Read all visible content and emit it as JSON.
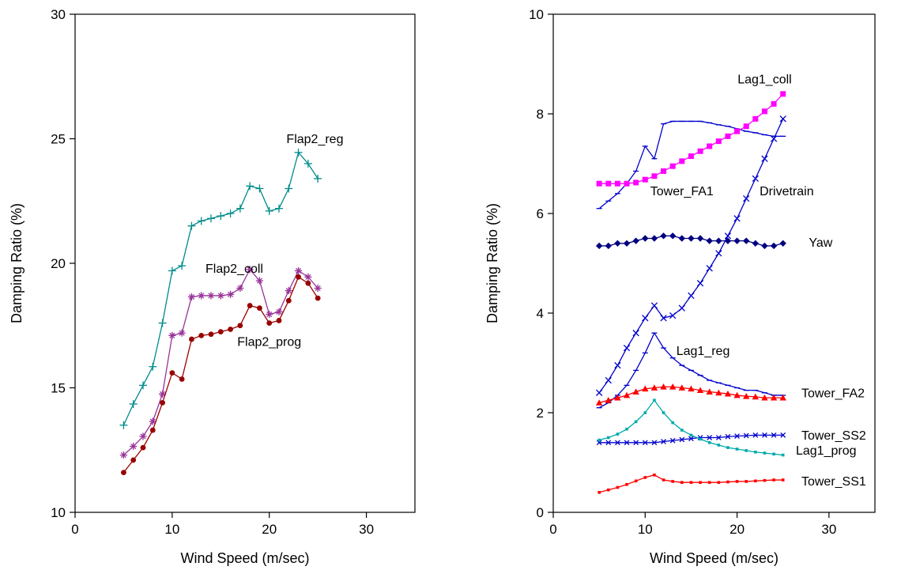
{
  "page": {
    "background": "#ffffff"
  },
  "chart_data": [
    {
      "type": "line",
      "title": "",
      "xlabel": "Wind Speed (m/sec)",
      "ylabel": "Damping Ratio (%)",
      "xlim": [
        0,
        35
      ],
      "ylim": [
        10,
        30
      ],
      "xticks": [
        0,
        10,
        20,
        30
      ],
      "yticks": [
        10,
        15,
        20,
        25,
        30
      ],
      "grid": false,
      "legend": "none",
      "x": [
        5,
        6,
        7,
        8,
        9,
        10,
        11,
        12,
        13,
        14,
        15,
        16,
        17,
        18,
        19,
        20,
        21,
        22,
        23,
        24,
        25
      ],
      "series": [
        {
          "name": "Flap2_reg",
          "color": "#008B8B",
          "marker": "plus",
          "values": [
            13.5,
            14.35,
            15.1,
            15.85,
            17.6,
            19.7,
            19.9,
            21.5,
            21.7,
            21.8,
            21.9,
            22.0,
            22.2,
            23.1,
            23.0,
            22.1,
            22.2,
            23.0,
            24.45,
            24.0,
            23.4
          ]
        },
        {
          "name": "Flap2_coll",
          "color": "#993399",
          "marker": "asterisk",
          "values": [
            12.3,
            12.65,
            13.05,
            13.65,
            14.75,
            17.1,
            17.2,
            18.65,
            18.7,
            18.7,
            18.7,
            18.75,
            19.0,
            19.75,
            19.3,
            17.95,
            18.05,
            18.9,
            19.7,
            19.45,
            19.0
          ]
        },
        {
          "name": "Flap2_prog",
          "color": "#990000",
          "marker": "circle",
          "values": [
            11.6,
            12.1,
            12.6,
            13.3,
            14.4,
            15.6,
            15.35,
            16.95,
            17.1,
            17.15,
            17.25,
            17.35,
            17.5,
            18.3,
            18.2,
            17.6,
            17.7,
            18.5,
            19.45,
            19.2,
            18.6
          ]
        }
      ],
      "annotations": [
        {
          "text": "Flap2_reg",
          "x": 24.7,
          "y": 25.0,
          "anchor": "middle"
        },
        {
          "text": "Flap2_coll",
          "x": 16.4,
          "y": 19.8,
          "anchor": "middle"
        },
        {
          "text": "Flap2_prog",
          "x": 20.0,
          "y": 16.85,
          "anchor": "middle"
        }
      ]
    },
    {
      "type": "line",
      "title": "",
      "xlabel": "Wind Speed (m/sec)",
      "ylabel": "Damping Ratio (%)",
      "xlim": [
        0,
        35
      ],
      "ylim": [
        0,
        10
      ],
      "xticks": [
        0,
        10,
        20,
        30
      ],
      "yticks": [
        0,
        2,
        4,
        6,
        8,
        10
      ],
      "grid": false,
      "legend": "none",
      "x": [
        5,
        6,
        7,
        8,
        9,
        10,
        11,
        12,
        13,
        14,
        15,
        16,
        17,
        18,
        19,
        20,
        21,
        22,
        23,
        24,
        25
      ],
      "series": [
        {
          "name": "Tower_FA1",
          "color": "#0000CC",
          "marker": "dash",
          "values": [
            6.1,
            6.25,
            6.4,
            6.6,
            6.85,
            7.35,
            7.1,
            7.8,
            7.85,
            7.85,
            7.85,
            7.85,
            7.82,
            7.78,
            7.75,
            7.7,
            7.65,
            7.62,
            7.58,
            7.55,
            7.55
          ]
        },
        {
          "name": "Drivetrain",
          "color": "#0000CC",
          "marker": "x",
          "values": [
            2.4,
            2.65,
            2.95,
            3.3,
            3.6,
            3.9,
            4.15,
            3.9,
            3.95,
            4.1,
            4.35,
            4.6,
            4.9,
            5.2,
            5.55,
            5.9,
            6.3,
            6.7,
            7.1,
            7.5,
            7.9
          ]
        },
        {
          "name": "Lag1_reg",
          "color": "#0000CC",
          "marker": "dash",
          "values": [
            2.1,
            2.2,
            2.35,
            2.55,
            2.85,
            3.2,
            3.6,
            3.3,
            3.1,
            2.95,
            2.85,
            2.75,
            2.65,
            2.6,
            2.55,
            2.5,
            2.45,
            2.45,
            2.4,
            2.35,
            2.35
          ]
        },
        {
          "name": "Tower_SS2",
          "color": "#0000CC",
          "marker": "x-small",
          "values": [
            1.4,
            1.4,
            1.4,
            1.4,
            1.4,
            1.4,
            1.4,
            1.42,
            1.44,
            1.46,
            1.48,
            1.5,
            1.5,
            1.5,
            1.52,
            1.53,
            1.54,
            1.55,
            1.55,
            1.55,
            1.55
          ]
        },
        {
          "name": "Lag1_prog",
          "color": "#00AAAA",
          "marker": "dot",
          "values": [
            1.45,
            1.5,
            1.57,
            1.67,
            1.82,
            2.0,
            2.25,
            2.0,
            1.8,
            1.65,
            1.55,
            1.47,
            1.4,
            1.35,
            1.3,
            1.27,
            1.24,
            1.21,
            1.19,
            1.17,
            1.15
          ]
        },
        {
          "name": "Tower_SS1",
          "color": "#FF0000",
          "marker": "dot",
          "values": [
            0.4,
            0.45,
            0.5,
            0.56,
            0.63,
            0.7,
            0.75,
            0.65,
            0.62,
            0.6,
            0.6,
            0.6,
            0.6,
            0.6,
            0.61,
            0.62,
            0.62,
            0.63,
            0.64,
            0.65,
            0.65
          ]
        },
        {
          "name": "Tower_FA2",
          "color": "#FF0000",
          "marker": "triangle",
          "values": [
            2.2,
            2.25,
            2.3,
            2.35,
            2.42,
            2.48,
            2.5,
            2.52,
            2.52,
            2.5,
            2.48,
            2.45,
            2.42,
            2.4,
            2.38,
            2.35,
            2.33,
            2.32,
            2.3,
            2.3,
            2.3
          ]
        },
        {
          "name": "Yaw",
          "color": "#000080",
          "marker": "diamond",
          "values": [
            5.35,
            5.35,
            5.4,
            5.4,
            5.45,
            5.5,
            5.5,
            5.55,
            5.55,
            5.5,
            5.5,
            5.5,
            5.45,
            5.45,
            5.45,
            5.45,
            5.45,
            5.4,
            5.35,
            5.35,
            5.4
          ]
        },
        {
          "name": "Lag1_coll",
          "color": "#FF00FF",
          "marker": "square",
          "values": [
            6.6,
            6.6,
            6.6,
            6.6,
            6.62,
            6.68,
            6.75,
            6.85,
            6.95,
            7.05,
            7.15,
            7.25,
            7.35,
            7.45,
            7.55,
            7.65,
            7.75,
            7.9,
            8.05,
            8.2,
            8.4
          ]
        }
      ],
      "annotations": [
        {
          "text": "Lag1_coll",
          "x": 23.0,
          "y": 8.7,
          "anchor": "middle"
        },
        {
          "text": "Tower_FA1",
          "x": 14.0,
          "y": 6.45,
          "anchor": "middle"
        },
        {
          "text": "Drivetrain",
          "x": 25.4,
          "y": 6.45,
          "anchor": "middle"
        },
        {
          "text": "Yaw",
          "x": 29.1,
          "y": 5.42,
          "anchor": "middle"
        },
        {
          "text": "Lag1_reg",
          "x": 16.3,
          "y": 3.25,
          "anchor": "middle"
        },
        {
          "text": "Tower_FA2",
          "x": 27.0,
          "y": 2.4,
          "anchor": "start"
        },
        {
          "text": "Tower_SS2",
          "x": 27.0,
          "y": 1.55,
          "anchor": "start"
        },
        {
          "text": "Lag1_prog",
          "x": 26.4,
          "y": 1.25,
          "anchor": "start"
        },
        {
          "text": "Tower_SS1",
          "x": 27.0,
          "y": 0.63,
          "anchor": "start"
        }
      ]
    }
  ]
}
